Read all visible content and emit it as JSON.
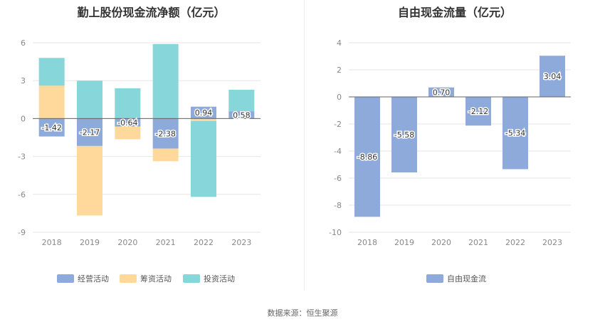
{
  "chart_data": [
    {
      "type": "bar",
      "stacked": true,
      "title": "勤上股份现金流净额（亿元）",
      "categories": [
        "2018",
        "2019",
        "2020",
        "2021",
        "2022",
        "2023"
      ],
      "ylim": [
        -9,
        6
      ],
      "yticks": [
        6,
        3,
        0,
        -3,
        -6,
        -9
      ],
      "grid": true,
      "legend": "bottom",
      "series": [
        {
          "name": "经营活动",
          "color": "#8eaadb",
          "values": [
            -1.42,
            -2.17,
            -0.64,
            -2.38,
            0.94,
            0.58
          ],
          "labels": [
            "-1.42",
            "-2.17",
            "-0.64",
            "-2.38",
            "0.94",
            "0.58"
          ]
        },
        {
          "name": "筹资活动",
          "color": "#ffd99b",
          "values": [
            2.6,
            -5.5,
            -1.0,
            -1.0,
            -0.2,
            0
          ]
        },
        {
          "name": "投资活动",
          "color": "#87d6d9",
          "values": [
            2.2,
            3.0,
            2.4,
            5.9,
            -6.0,
            1.7
          ]
        }
      ]
    },
    {
      "type": "bar",
      "title": "自由现金流量（亿元）",
      "categories": [
        "2018",
        "2019",
        "2020",
        "2021",
        "2022",
        "2023"
      ],
      "ylim": [
        -10,
        4
      ],
      "yticks": [
        4,
        2,
        0,
        -2,
        -4,
        -6,
        -8,
        -10
      ],
      "grid": true,
      "legend": "bottom",
      "series": [
        {
          "name": "自由现金流",
          "color": "#8eaadb",
          "values": [
            -8.86,
            -5.58,
            0.7,
            -2.12,
            -5.34,
            3.04
          ],
          "labels": [
            "-8.86",
            "-5.58",
            "0.70",
            "-2.12",
            "-5.34",
            "3.04"
          ]
        }
      ]
    }
  ],
  "source": "数据来源：恒生聚源"
}
